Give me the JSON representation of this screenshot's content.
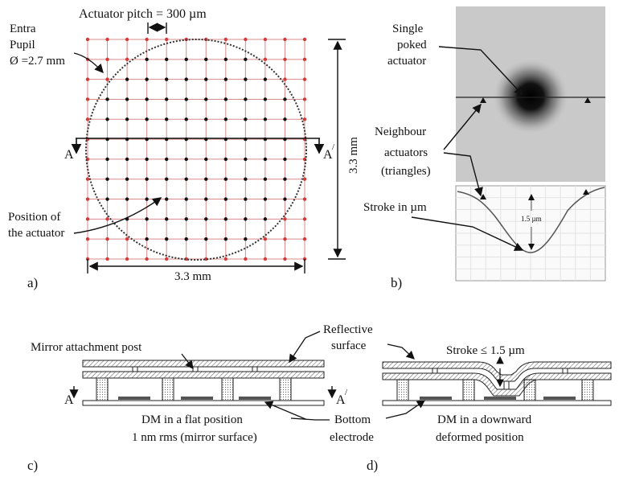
{
  "panel_a": {
    "pitch_label": "Actuator pitch = 300 µm",
    "pupil_label_1": "Entra",
    "pupil_label_2": "Pupil",
    "pupil_label_3": "Ø =2.7 mm",
    "height_label": "3.3 mm",
    "width_label": "3.3 mm",
    "section_left": "A",
    "section_right": "A",
    "prime": "/",
    "position_label_1": "Position of",
    "position_label_2": "the actuator",
    "grid_actuators_per_side": 12,
    "tag": "a)"
  },
  "panel_b": {
    "single_label_1": "Single",
    "single_label_2": "poked",
    "single_label_3": "actuator",
    "neighbour_label_1": "Neighbour",
    "neighbour_label_2": "actuators",
    "neighbour_label_3": "(triangles)",
    "stroke_label": "Stroke in µm",
    "profile_value": "1.5 µm",
    "tag": "b)"
  },
  "panel_c": {
    "post_label": "Mirror attachment post",
    "section_left": "A",
    "section_right": "A",
    "prime": "/",
    "flat_label_1": "DM in a flat position",
    "flat_label_2": "1 nm rms (mirror surface)",
    "tag": "c)"
  },
  "panel_d": {
    "reflective_label_1": "Reflective",
    "reflective_label_2": "surface",
    "stroke_label": "Stroke ≤ 1.5 µm",
    "bottom_label_1": "Bottom",
    "bottom_label_2": "electrode",
    "deformed_label_1": "DM in a downward",
    "deformed_label_2": "deformed position",
    "tag": "d)"
  },
  "colors": {
    "grid_red": "#d43a3a",
    "ink": "#111111"
  }
}
